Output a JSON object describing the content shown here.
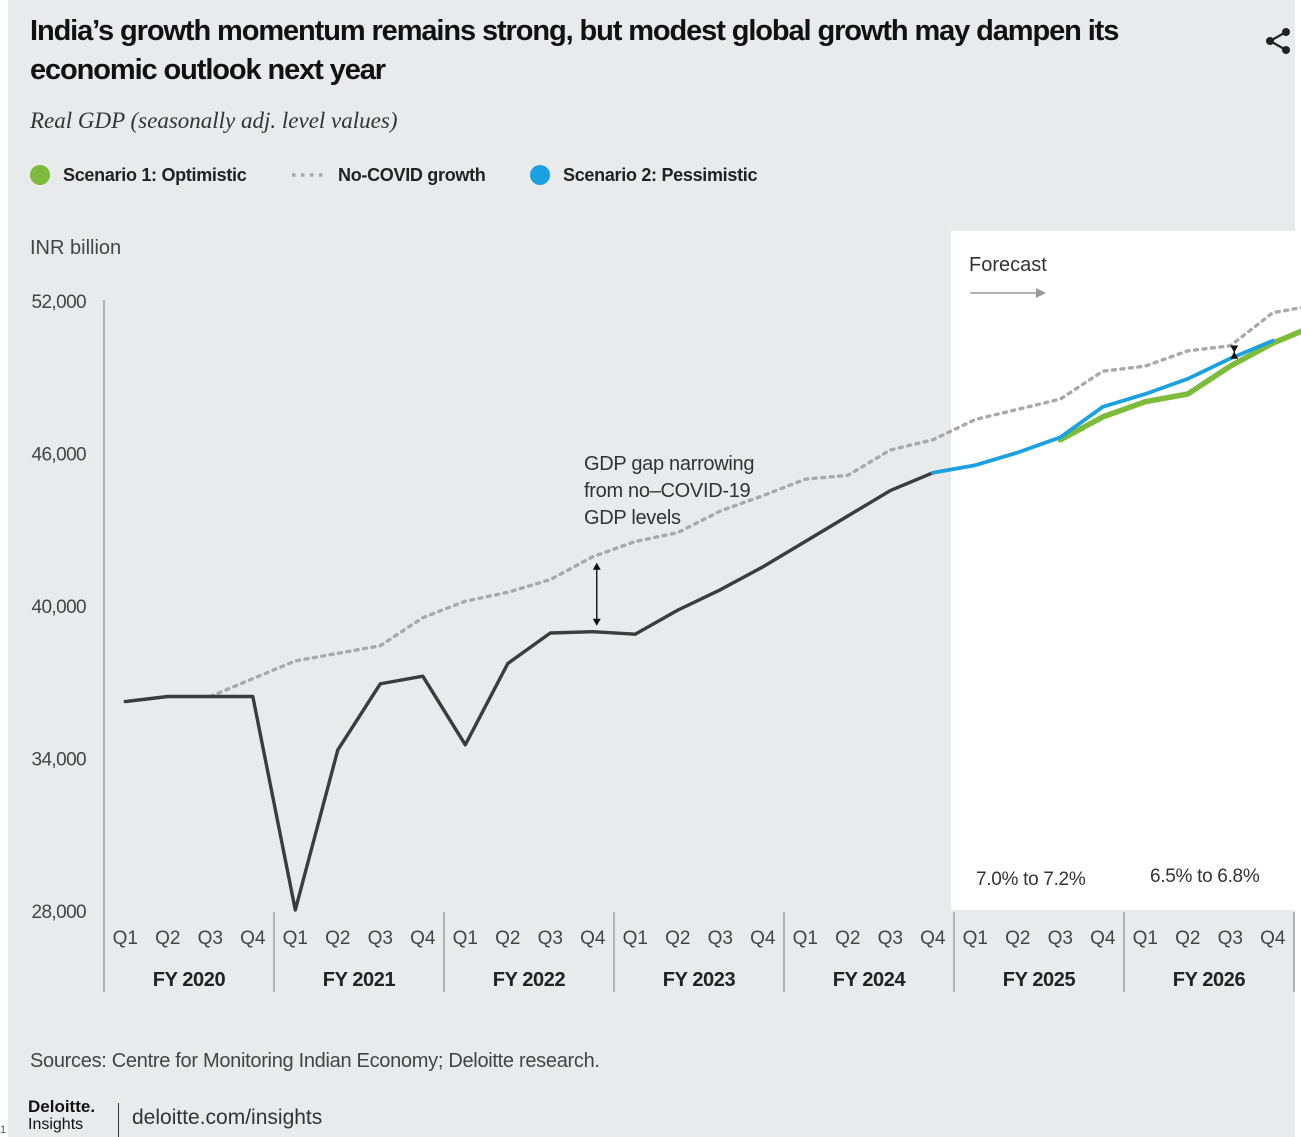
{
  "header": {
    "title": "India’s growth momentum remains strong, but modest global growth may dampen its economic outlook next year",
    "subtitle": "Real GDP (seasonally adj. level values)",
    "share_icon": "share-icon"
  },
  "legend": {
    "items": [
      {
        "label": "Scenario 1: Optimistic",
        "color": "#7dbb3a",
        "style": "dot"
      },
      {
        "label": "No-COVID growth",
        "color": "#a9a9a9",
        "style": "dotted"
      },
      {
        "label": "Scenario 2: Pessimistic",
        "color": "#1ba1e2",
        "style": "dot"
      }
    ]
  },
  "footer": {
    "sources": "Sources: Centre for Monitoring Indian Economy; Deloitte research.",
    "brand_name": "Deloitte.",
    "brand_sub": "Insights",
    "url": "deloitte.com/insights",
    "edge_mark": "1"
  },
  "chart_data": {
    "type": "line",
    "title": "India’s growth momentum remains strong, but modest global growth may dampen its economic outlook next year",
    "subtitle": "Real GDP (seasonally adj. level values)",
    "ylabel": "INR billion",
    "ylim": [
      28000,
      52000
    ],
    "yticks": [
      28000,
      34000,
      40000,
      46000,
      52000
    ],
    "ytick_labels": [
      "28,000",
      "34,000",
      "40,000",
      "46,000",
      "52,000"
    ],
    "grid": false,
    "legend_position": "top",
    "quarters": [
      "Q1",
      "Q2",
      "Q3",
      "Q4"
    ],
    "fiscal_years": [
      "FY 2020",
      "FY 2021",
      "FY 2022",
      "FY 2023",
      "FY 2024",
      "FY 2025",
      "FY 2026"
    ],
    "forecast": {
      "label": "Forecast",
      "start_index": 20
    },
    "series": [
      {
        "role": "actual",
        "color": "#3c3c3c",
        "start_index": 0,
        "values": [
          36200,
          36400,
          36400,
          36400,
          28000,
          34300,
          36900,
          37200,
          34500,
          37700,
          38900,
          38950,
          38850,
          39800,
          40600,
          41500,
          42500,
          43500,
          44500,
          45200
        ]
      },
      {
        "name": "No-COVID growth",
        "color": "#a9a9a9",
        "start_index": 2,
        "values": [
          36400,
          37100,
          37800,
          38100,
          38400,
          39500,
          40150,
          40500,
          41000,
          41900,
          42500,
          42850,
          43700,
          44300,
          44950,
          45100,
          46100,
          46500,
          47300,
          47700,
          48100,
          49200,
          49400,
          50000,
          50200,
          51500,
          51800
        ]
      },
      {
        "name": "Scenario 1: Optimistic",
        "color": "#7dbb3a",
        "start_index": 22,
        "values": [
          46500,
          47400,
          48000,
          48300,
          49400,
          50300,
          51000
        ]
      },
      {
        "name": "Scenario 2: Pessimistic",
        "color": "#1ba1e2",
        "start_index": 19,
        "values": [
          45200,
          45500,
          46000,
          46600,
          47800,
          48300,
          48900,
          49700,
          50400
        ]
      }
    ],
    "annotations": [
      {
        "text": [
          "GDP gap narrowing",
          "from no–COVID-19",
          "GDP levels"
        ],
        "index": 11
      },
      {
        "text": "7.0% to 7.2%",
        "year": "FY 2025"
      },
      {
        "text": "6.5% to 6.8%",
        "year": "FY 2026"
      }
    ]
  }
}
